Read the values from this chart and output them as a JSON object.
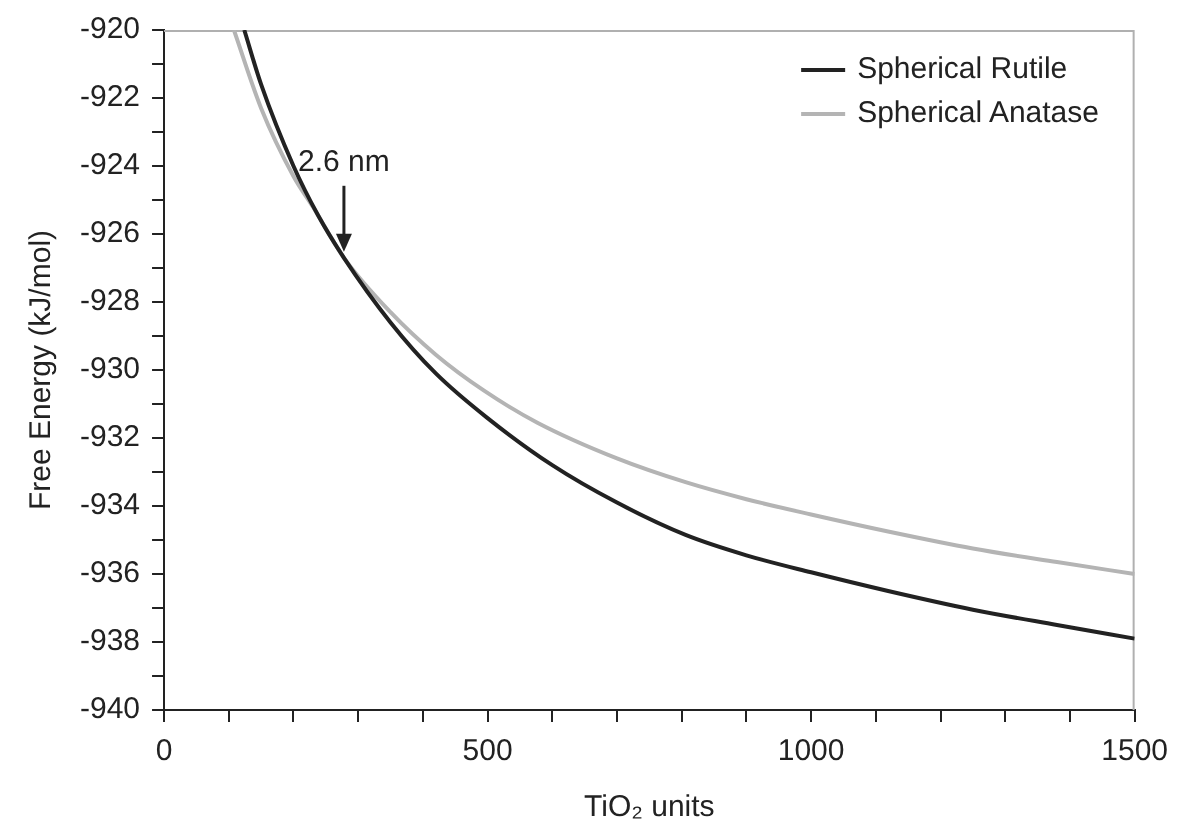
{
  "chart_data": {
    "type": "line",
    "xlabel": "TiO₂ units",
    "ylabel": "Free Energy (kJ/mol)",
    "xlim": [
      0,
      1500
    ],
    "xticks": [
      0,
      {
        "value": 100,
        "label": null
      },
      {
        "value": 200,
        "label": null
      },
      {
        "value": 300,
        "label": null
      },
      {
        "value": 400,
        "label": null
      },
      500,
      {
        "value": 600,
        "label": null
      },
      {
        "value": 700,
        "label": null
      },
      {
        "value": 800,
        "label": null
      },
      {
        "value": 900,
        "label": null
      },
      1000,
      {
        "value": 1100,
        "label": null
      },
      {
        "value": 1200,
        "label": null
      },
      {
        "value": 1300,
        "label": null
      },
      {
        "value": 1400,
        "label": null
      },
      1500
    ],
    "ylim": [
      -940,
      -920
    ],
    "yticks": [
      -940,
      {
        "value": -939,
        "label": null
      },
      -938,
      {
        "value": -937,
        "label": null
      },
      -936,
      {
        "value": -935,
        "label": null
      },
      -934,
      {
        "value": -933,
        "label": null
      },
      -932,
      {
        "value": -931,
        "label": null
      },
      -930,
      {
        "value": -929,
        "label": null
      },
      -928,
      {
        "value": -927,
        "label": null
      },
      -926,
      {
        "value": -925,
        "label": null
      },
      -924,
      {
        "value": -923,
        "label": null
      },
      -922,
      {
        "value": -921,
        "label": null
      },
      -920
    ],
    "grid": false,
    "legend": "top right",
    "marker": "none",
    "line_style": "solid",
    "annotations": [
      {
        "text": "2.6 nm",
        "x": 278,
        "y": -926.7
      }
    ],
    "series": [
      {
        "name": "Spherical Rutile",
        "color": "#222222",
        "x": [
          124,
          150,
          200,
          238,
          278,
          350,
          420,
          499,
          600,
          700,
          806,
          900,
          1000,
          1119,
          1250,
          1380,
          1500
        ],
        "values": [
          -920,
          -921.6,
          -924.0,
          -925.45,
          -926.7,
          -928.6,
          -930.1,
          -931.4,
          -932.8,
          -933.9,
          -934.85,
          -935.45,
          -935.95,
          -936.5,
          -937.05,
          -937.5,
          -937.9
        ]
      },
      {
        "name": "Spherical Anatase",
        "color": "#b4b4b4",
        "x": [
          108,
          150,
          200,
          230,
          278,
          350,
          420,
          494,
          577,
          700,
          806,
          900,
          1000,
          1119,
          1250,
          1380,
          1500
        ],
        "values": [
          -920,
          -922.3,
          -924.3,
          -925.2,
          -926.7,
          -928.3,
          -929.55,
          -930.6,
          -931.55,
          -932.6,
          -933.3,
          -933.8,
          -934.25,
          -934.75,
          -935.25,
          -935.65,
          -936.0
        ]
      }
    ]
  }
}
